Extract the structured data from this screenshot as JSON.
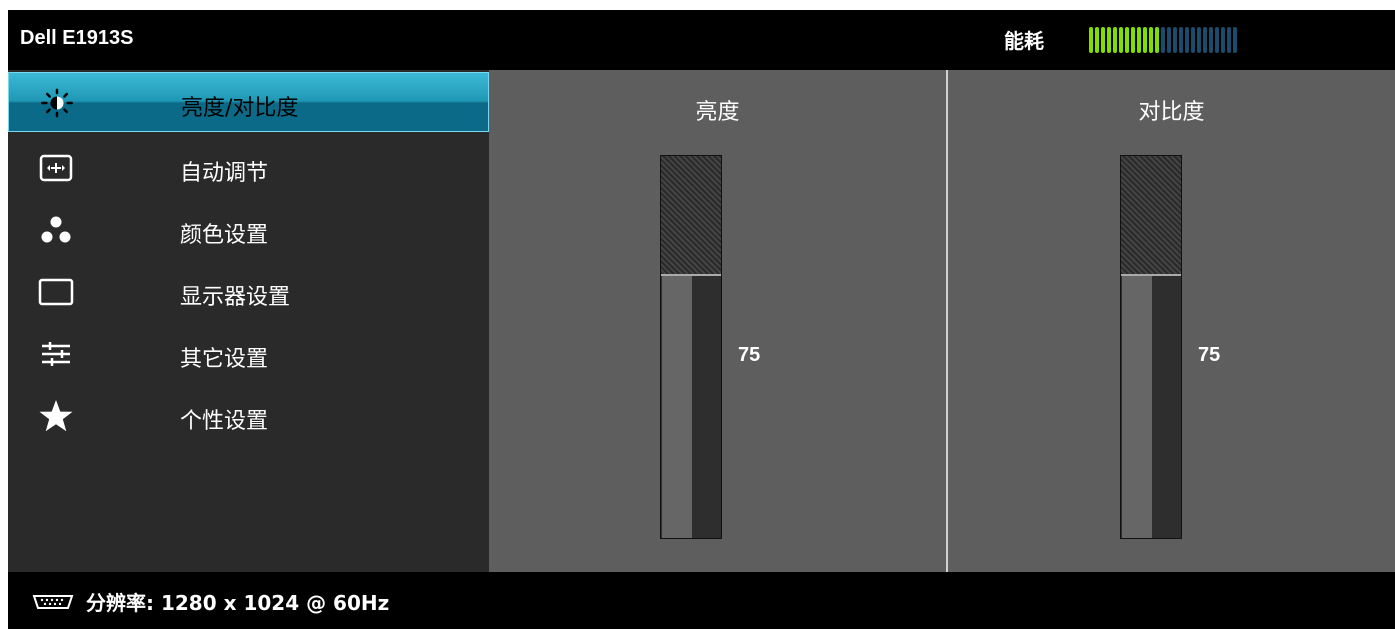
{
  "header": {
    "title": "Dell E1913S",
    "power_label": "能耗",
    "power_level": 0.48,
    "power_segments": 25,
    "power_on_color": "#7fe000",
    "power_off_color": "#1b4a6a"
  },
  "sidebar": {
    "items": [
      {
        "label": "亮度/对比度",
        "icon": "brightness-icon",
        "selected": true
      },
      {
        "label": "自动调节",
        "icon": "auto-adjust-icon",
        "selected": false
      },
      {
        "label": "颜色设置",
        "icon": "color-dots-icon",
        "selected": false
      },
      {
        "label": "显示器设置",
        "icon": "display-icon",
        "selected": false
      },
      {
        "label": "其它设置",
        "icon": "sliders-icon",
        "selected": false
      },
      {
        "label": "个性设置",
        "icon": "star-icon",
        "selected": false
      }
    ]
  },
  "brightness": {
    "title": "亮度",
    "value": "75",
    "level": 0.75
  },
  "contrast": {
    "title": "对比度",
    "value": "75",
    "level": 0.75
  },
  "footer": {
    "resolution_text": "分辨率: 1280 x 1024 @ 60Hz",
    "icon": "input-connector-icon"
  },
  "colors": {
    "accent": "#1e95b3",
    "panel_bg": "#5e5e5e",
    "sidebar_bg": "#2a2a2a"
  }
}
